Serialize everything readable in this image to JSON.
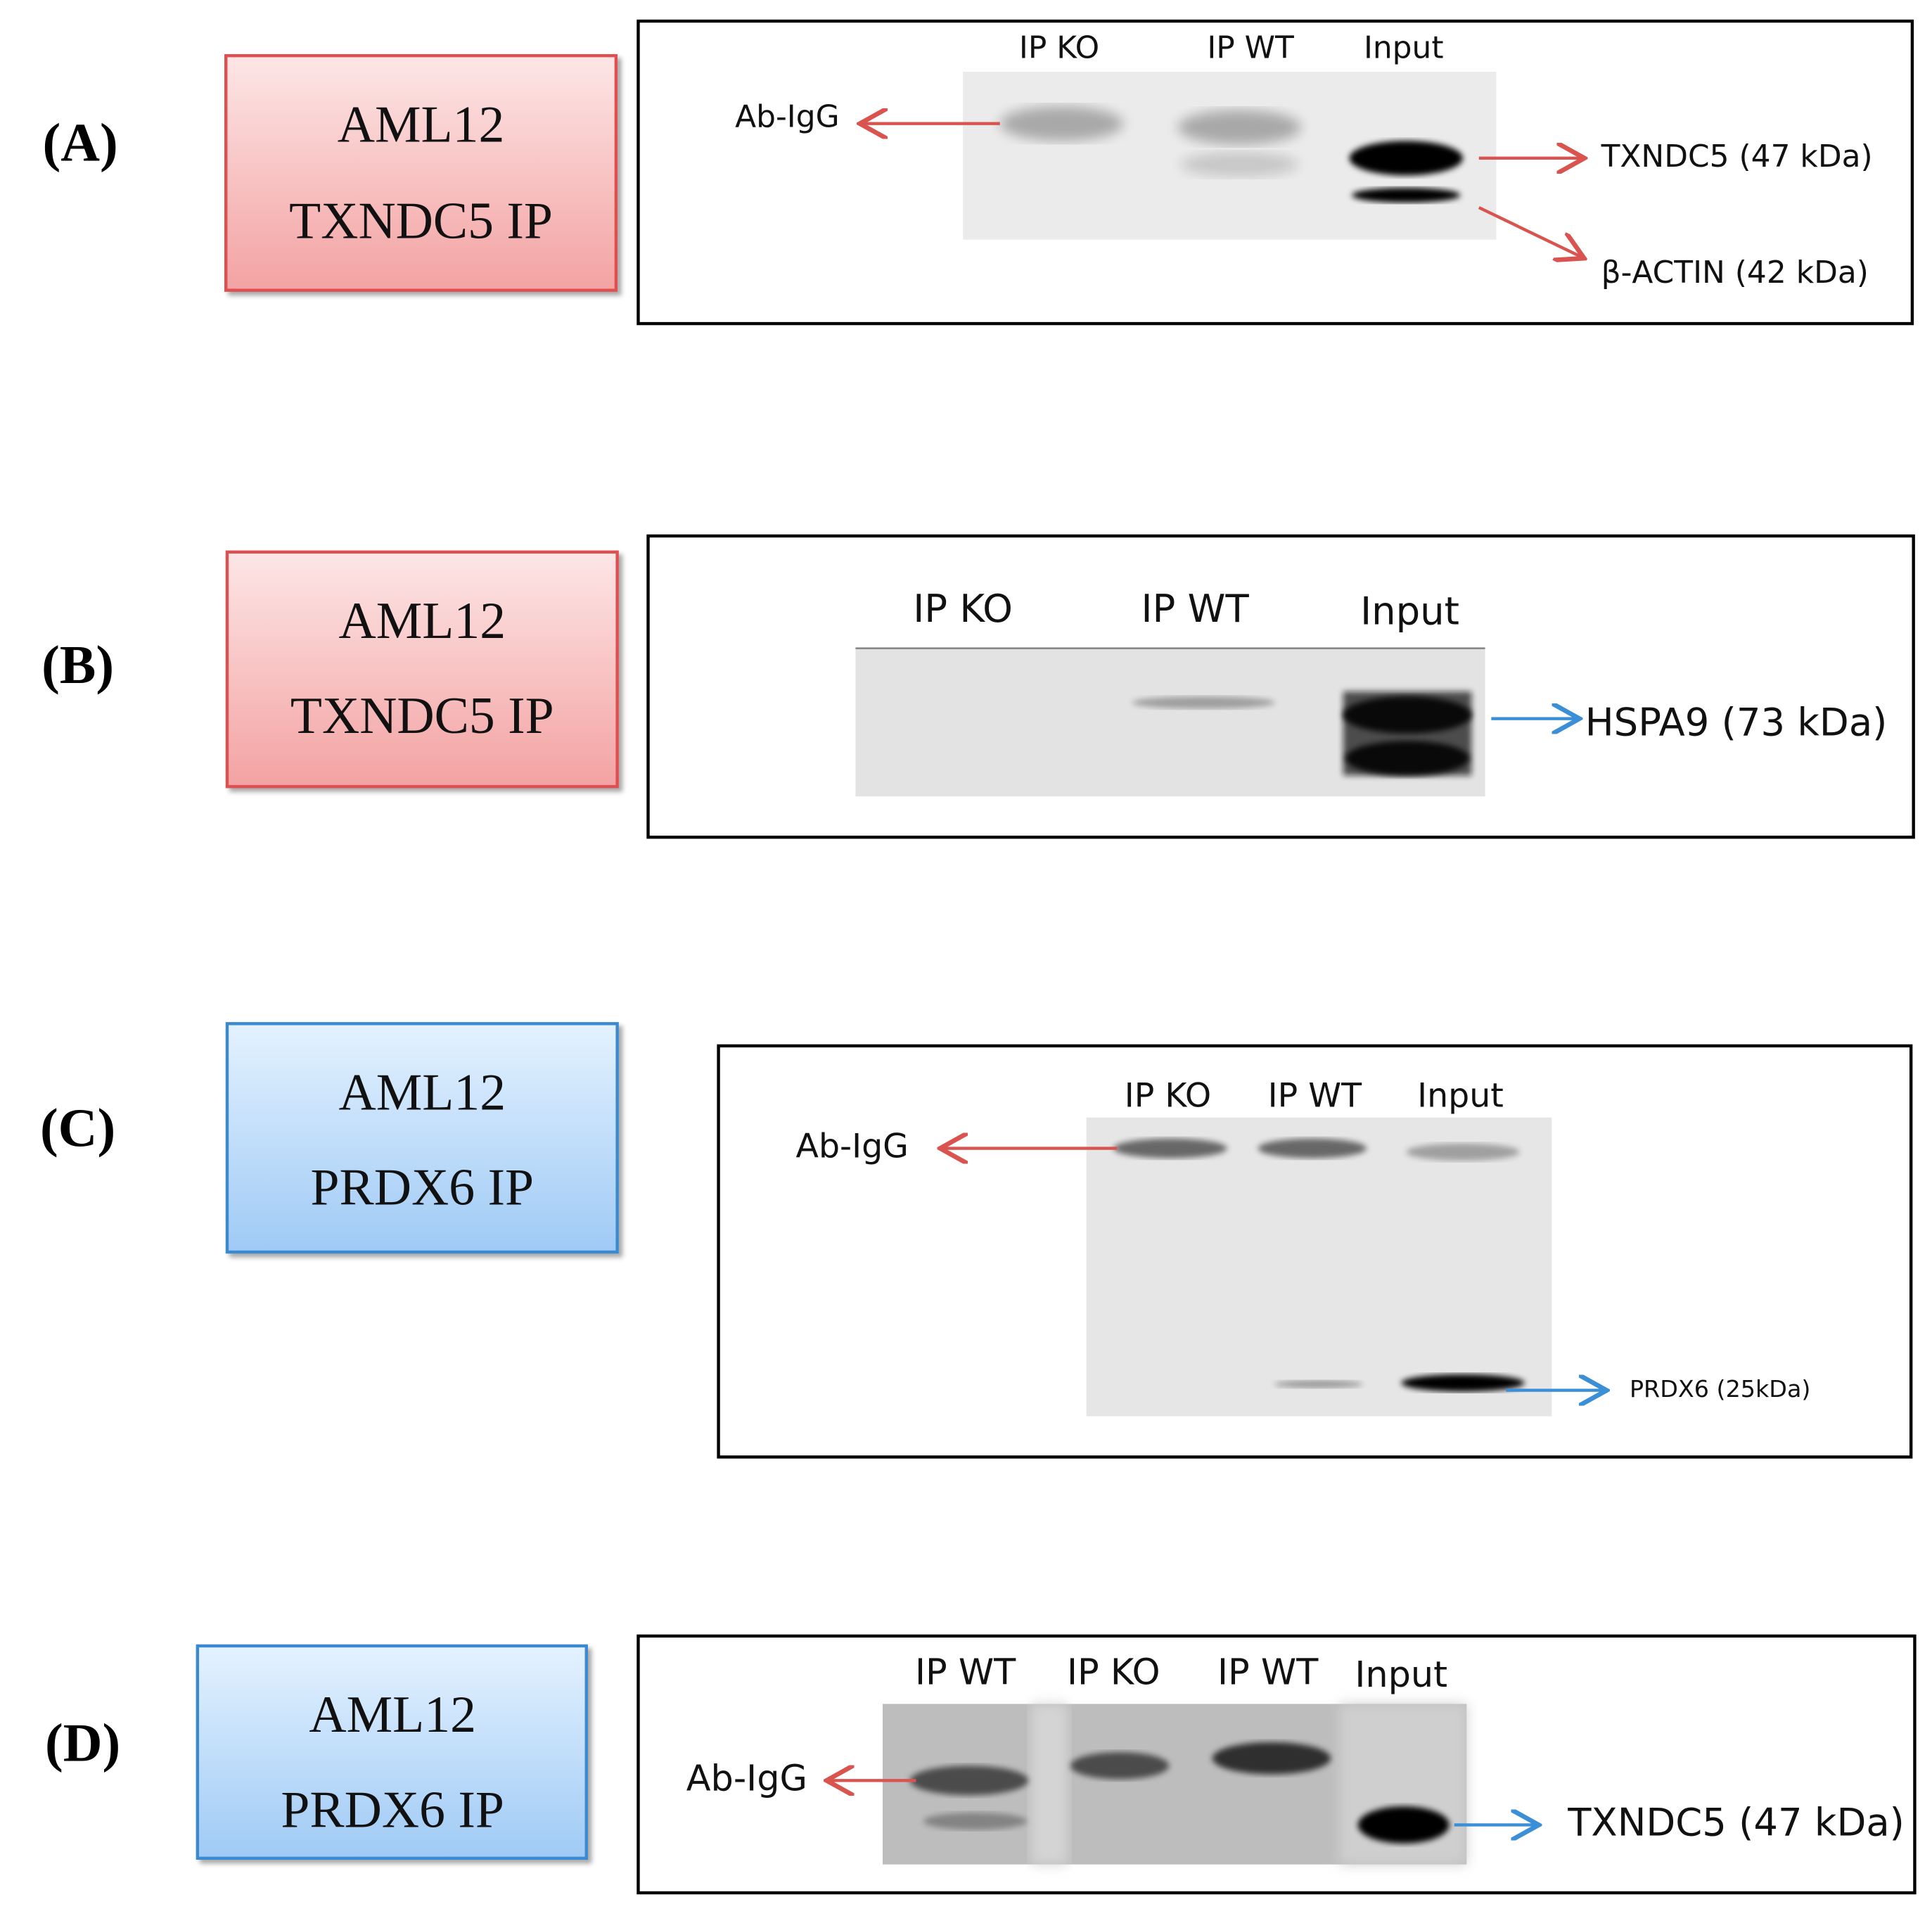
{
  "panels": [
    {
      "label": "(A)",
      "box": [
        "AML12",
        "TXNDC5 IP"
      ],
      "lanes": [
        "IP KO",
        "IP WT",
        "Input"
      ],
      "annotations": [
        "Ab-IgG",
        "TXNDC5 (47 kDa)",
        "β-ACTIN (42 kDa)"
      ]
    },
    {
      "label": "(B)",
      "box": [
        "AML12",
        "TXNDC5 IP"
      ],
      "lanes": [
        "IP KO",
        "IP WT",
        "Input"
      ],
      "annotations": [
        "HSPA9 (73 kDa)"
      ]
    },
    {
      "label": "(C)",
      "box": [
        "AML12",
        "PRDX6 IP"
      ],
      "lanes": [
        "IP KO",
        "IP WT",
        "Input"
      ],
      "annotations": [
        "Ab-IgG",
        "PRDX6 (25kDa)"
      ]
    },
    {
      "label": "(D)",
      "box": [
        "AML12",
        "PRDX6 IP"
      ],
      "lanes": [
        "IP WT",
        "IP KO",
        "IP WT",
        "Input"
      ],
      "annotations": [
        "Ab-IgG",
        "TXNDC5 (47 kDa)"
      ]
    }
  ]
}
